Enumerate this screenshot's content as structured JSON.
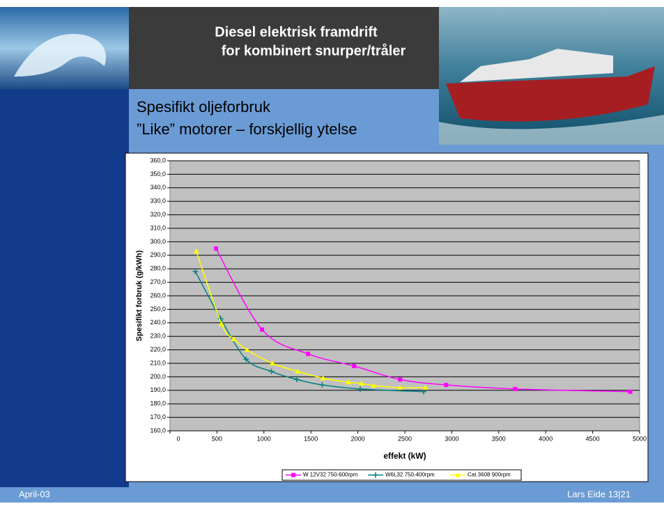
{
  "header": {
    "title": [
      "Diesel elektrisk framdrift",
      "for kombinert snurper/tråler"
    ],
    "subtitle": [
      "Spesifikt oljeforbruk",
      "”Like” motorer – forskjellig ytelse"
    ]
  },
  "footer": {
    "left": "April-03",
    "right": "Lars Eide  13|21"
  },
  "chart_data": {
    "type": "line",
    "xlabel": "effekt (kW)",
    "ylabel": "Spesifikt forbruk (g/kWh)",
    "xlim": [
      0,
      5000
    ],
    "xticks": [
      0,
      500,
      1000,
      1500,
      2000,
      2500,
      3000,
      3500,
      4000,
      4500,
      5000
    ],
    "ylim": [
      160,
      360
    ],
    "yticks": [
      {
        "value": 160,
        "label": "160,0"
      },
      {
        "value": 170,
        "label": "170,0"
      },
      {
        "value": 180,
        "label": "180,0"
      },
      {
        "value": 190,
        "label": "190,0"
      },
      {
        "value": 200,
        "label": "200,0"
      },
      {
        "value": 210,
        "label": "210,0"
      },
      {
        "value": 220,
        "label": "220,0"
      },
      {
        "value": 230,
        "label": "230,0"
      },
      {
        "value": 240,
        "label": "240,0"
      },
      {
        "value": 250,
        "label": "250,0"
      },
      {
        "value": 260,
        "label": "260,0"
      },
      {
        "value": 270,
        "label": "270,0"
      },
      {
        "value": 280,
        "label": "280,0"
      },
      {
        "value": 290,
        "label": "290,0"
      },
      {
        "value": 300,
        "label": "300,0"
      },
      {
        "value": 310,
        "label": "310,0"
      },
      {
        "value": 320,
        "label": "320,0"
      },
      {
        "value": 330,
        "label": "330,0"
      },
      {
        "value": 340,
        "label": "340,0"
      },
      {
        "value": 350,
        "label": "350,0"
      },
      {
        "value": 360,
        "label": "360,0"
      }
    ],
    "grid": true,
    "series": [
      {
        "name": "W 12V32 750-600rpm",
        "color": "#ff00ff",
        "marker": "square",
        "x": [
          490,
          980,
          1470,
          1960,
          2450,
          2940,
          3675,
          4900
        ],
        "values": [
          295,
          235,
          217,
          208,
          198,
          194,
          191,
          189
        ]
      },
      {
        "name": "W6L32 750-400rpm",
        "color": "#008080",
        "marker": "plus",
        "x": [
          270,
          540,
          810,
          1080,
          1350,
          1620,
          2025,
          2700
        ],
        "values": [
          278,
          243,
          213,
          204,
          198,
          194,
          191,
          189
        ]
      },
      {
        "name": "Cat 3608 900rpm",
        "color": "#ffff00",
        "marker": "triangle",
        "x": [
          280,
          550,
          680,
          820,
          1090,
          1360,
          1630,
          1900,
          2040,
          2170,
          2450,
          2720
        ],
        "values": [
          293,
          239,
          228,
          220,
          210,
          204,
          199,
          196,
          195,
          193.5,
          192,
          192
        ]
      }
    ]
  }
}
